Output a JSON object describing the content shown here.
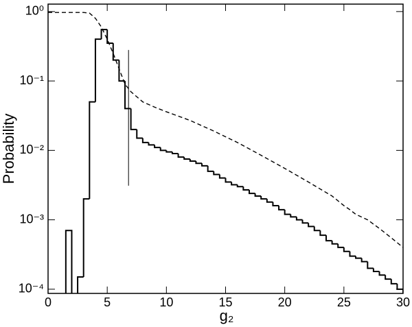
{
  "chart_data": {
    "type": "histogram",
    "xlabel": "g₂",
    "ylabel": "Probability",
    "log_y": true,
    "xlim": [
      0,
      30
    ],
    "ylim": [
      8.7e-05,
      1.28
    ],
    "xticks": [
      0,
      5,
      10,
      15,
      20,
      25,
      30
    ],
    "yticks": [
      {
        "value": 0.0001,
        "label": "10⁻⁴"
      },
      {
        "value": 0.001,
        "label": "10⁻³"
      },
      {
        "value": 0.01,
        "label": "10⁻²"
      },
      {
        "value": 0.1,
        "label": "10⁻¹"
      },
      {
        "value": 1,
        "label": "10⁰"
      }
    ],
    "color": "#000000",
    "bins": [
      1.5,
      2,
      2.5,
      3,
      3.5,
      4,
      4.5,
      5,
      5.5,
      6,
      6.5,
      7,
      7.5,
      8,
      8.5,
      9,
      9.5,
      10,
      10.5,
      11,
      11.5,
      12,
      12.5,
      13,
      13.5,
      14,
      14.5,
      15,
      15.5,
      16,
      16.5,
      17,
      17.5,
      18,
      18.5,
      19,
      19.5,
      20,
      20.5,
      21,
      21.5,
      22,
      22.5,
      23,
      23.5,
      24,
      24.5,
      25,
      25.5,
      26,
      26.5,
      27,
      27.5,
      28,
      28.5,
      29,
      29.5,
      30
    ],
    "values": [
      0.0007,
      null,
      0.00015,
      0.002,
      0.05,
      0.4,
      0.55,
      0.35,
      0.2,
      0.1,
      0.04,
      0.02,
      0.015,
      0.013,
      0.012,
      0.011,
      0.01,
      0.0095,
      0.009,
      0.008,
      0.0075,
      0.007,
      0.0065,
      0.006,
      0.005,
      0.0045,
      0.004,
      0.0035,
      0.0032,
      0.003,
      0.0027,
      0.0024,
      0.0022,
      0.002,
      0.0018,
      0.0016,
      0.0014,
      0.0012,
      0.0011,
      0.001,
      0.0009,
      0.0008,
      0.0007,
      0.0006,
      0.0005,
      0.00045,
      0.0004,
      0.00035,
      0.0003,
      0.00028,
      0.00025,
      0.0002,
      0.00018,
      0.00016,
      0.00014,
      0.00012,
      0.0001
    ],
    "lines": [
      {
        "dashed": true,
        "color": "#000000",
        "x": [
          0,
          3,
          3.5,
          4,
          4.5,
          5,
          5.5,
          6,
          6.5,
          7,
          8,
          9,
          10,
          12,
          14,
          16,
          18,
          20,
          22,
          24,
          25,
          25.5,
          26,
          27,
          28,
          29,
          30
        ],
        "values": [
          0.97,
          0.97,
          0.95,
          0.8,
          0.6,
          0.4,
          0.25,
          0.15,
          0.09,
          0.07,
          0.05,
          0.042,
          0.036,
          0.027,
          0.019,
          0.013,
          0.0085,
          0.0055,
          0.0035,
          0.0022,
          0.0016,
          0.0014,
          0.0012,
          0.001,
          0.00075,
          0.00055,
          0.0004
        ]
      }
    ],
    "vline": {
      "x": 6.8,
      "y": [
        0.0031,
        0.28
      ]
    }
  }
}
